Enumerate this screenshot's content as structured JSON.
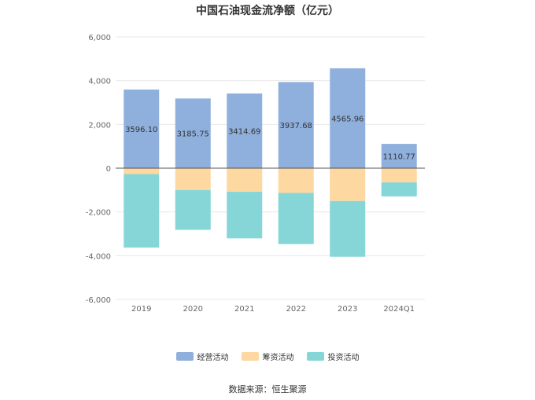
{
  "chart_data": {
    "type": "bar",
    "stacked": true,
    "title": "中国石油现金流净额（亿元）",
    "categories": [
      "2019",
      "2020",
      "2021",
      "2022",
      "2023",
      "2024Q1"
    ],
    "series": [
      {
        "name": "经营活动",
        "color": "#8fb0dd",
        "values": [
          3596.1,
          3185.75,
          3414.69,
          3937.68,
          4565.96,
          1110.77
        ]
      },
      {
        "name": "筹资活动",
        "color": "#fdd8a0",
        "values": [
          -270,
          -1000,
          -1080,
          -1130,
          -1500,
          -650
        ]
      },
      {
        "name": "投资活动",
        "color": "#86d6d8",
        "values": [
          -3360,
          -1820,
          -2130,
          -2340,
          -2550,
          -640
        ]
      }
    ],
    "data_labels": [
      "3596.10",
      "3185.75",
      "3414.69",
      "3937.68",
      "4565.96",
      "1110.77"
    ],
    "y_ticks": [
      "6,000",
      "4,000",
      "2,000",
      "0",
      "-2,000",
      "-4,000",
      "-6,000"
    ],
    "ylim": [
      -6000,
      6000
    ],
    "grid": true,
    "legend_position": "bottom"
  },
  "source": "数据来源：恒生聚源"
}
